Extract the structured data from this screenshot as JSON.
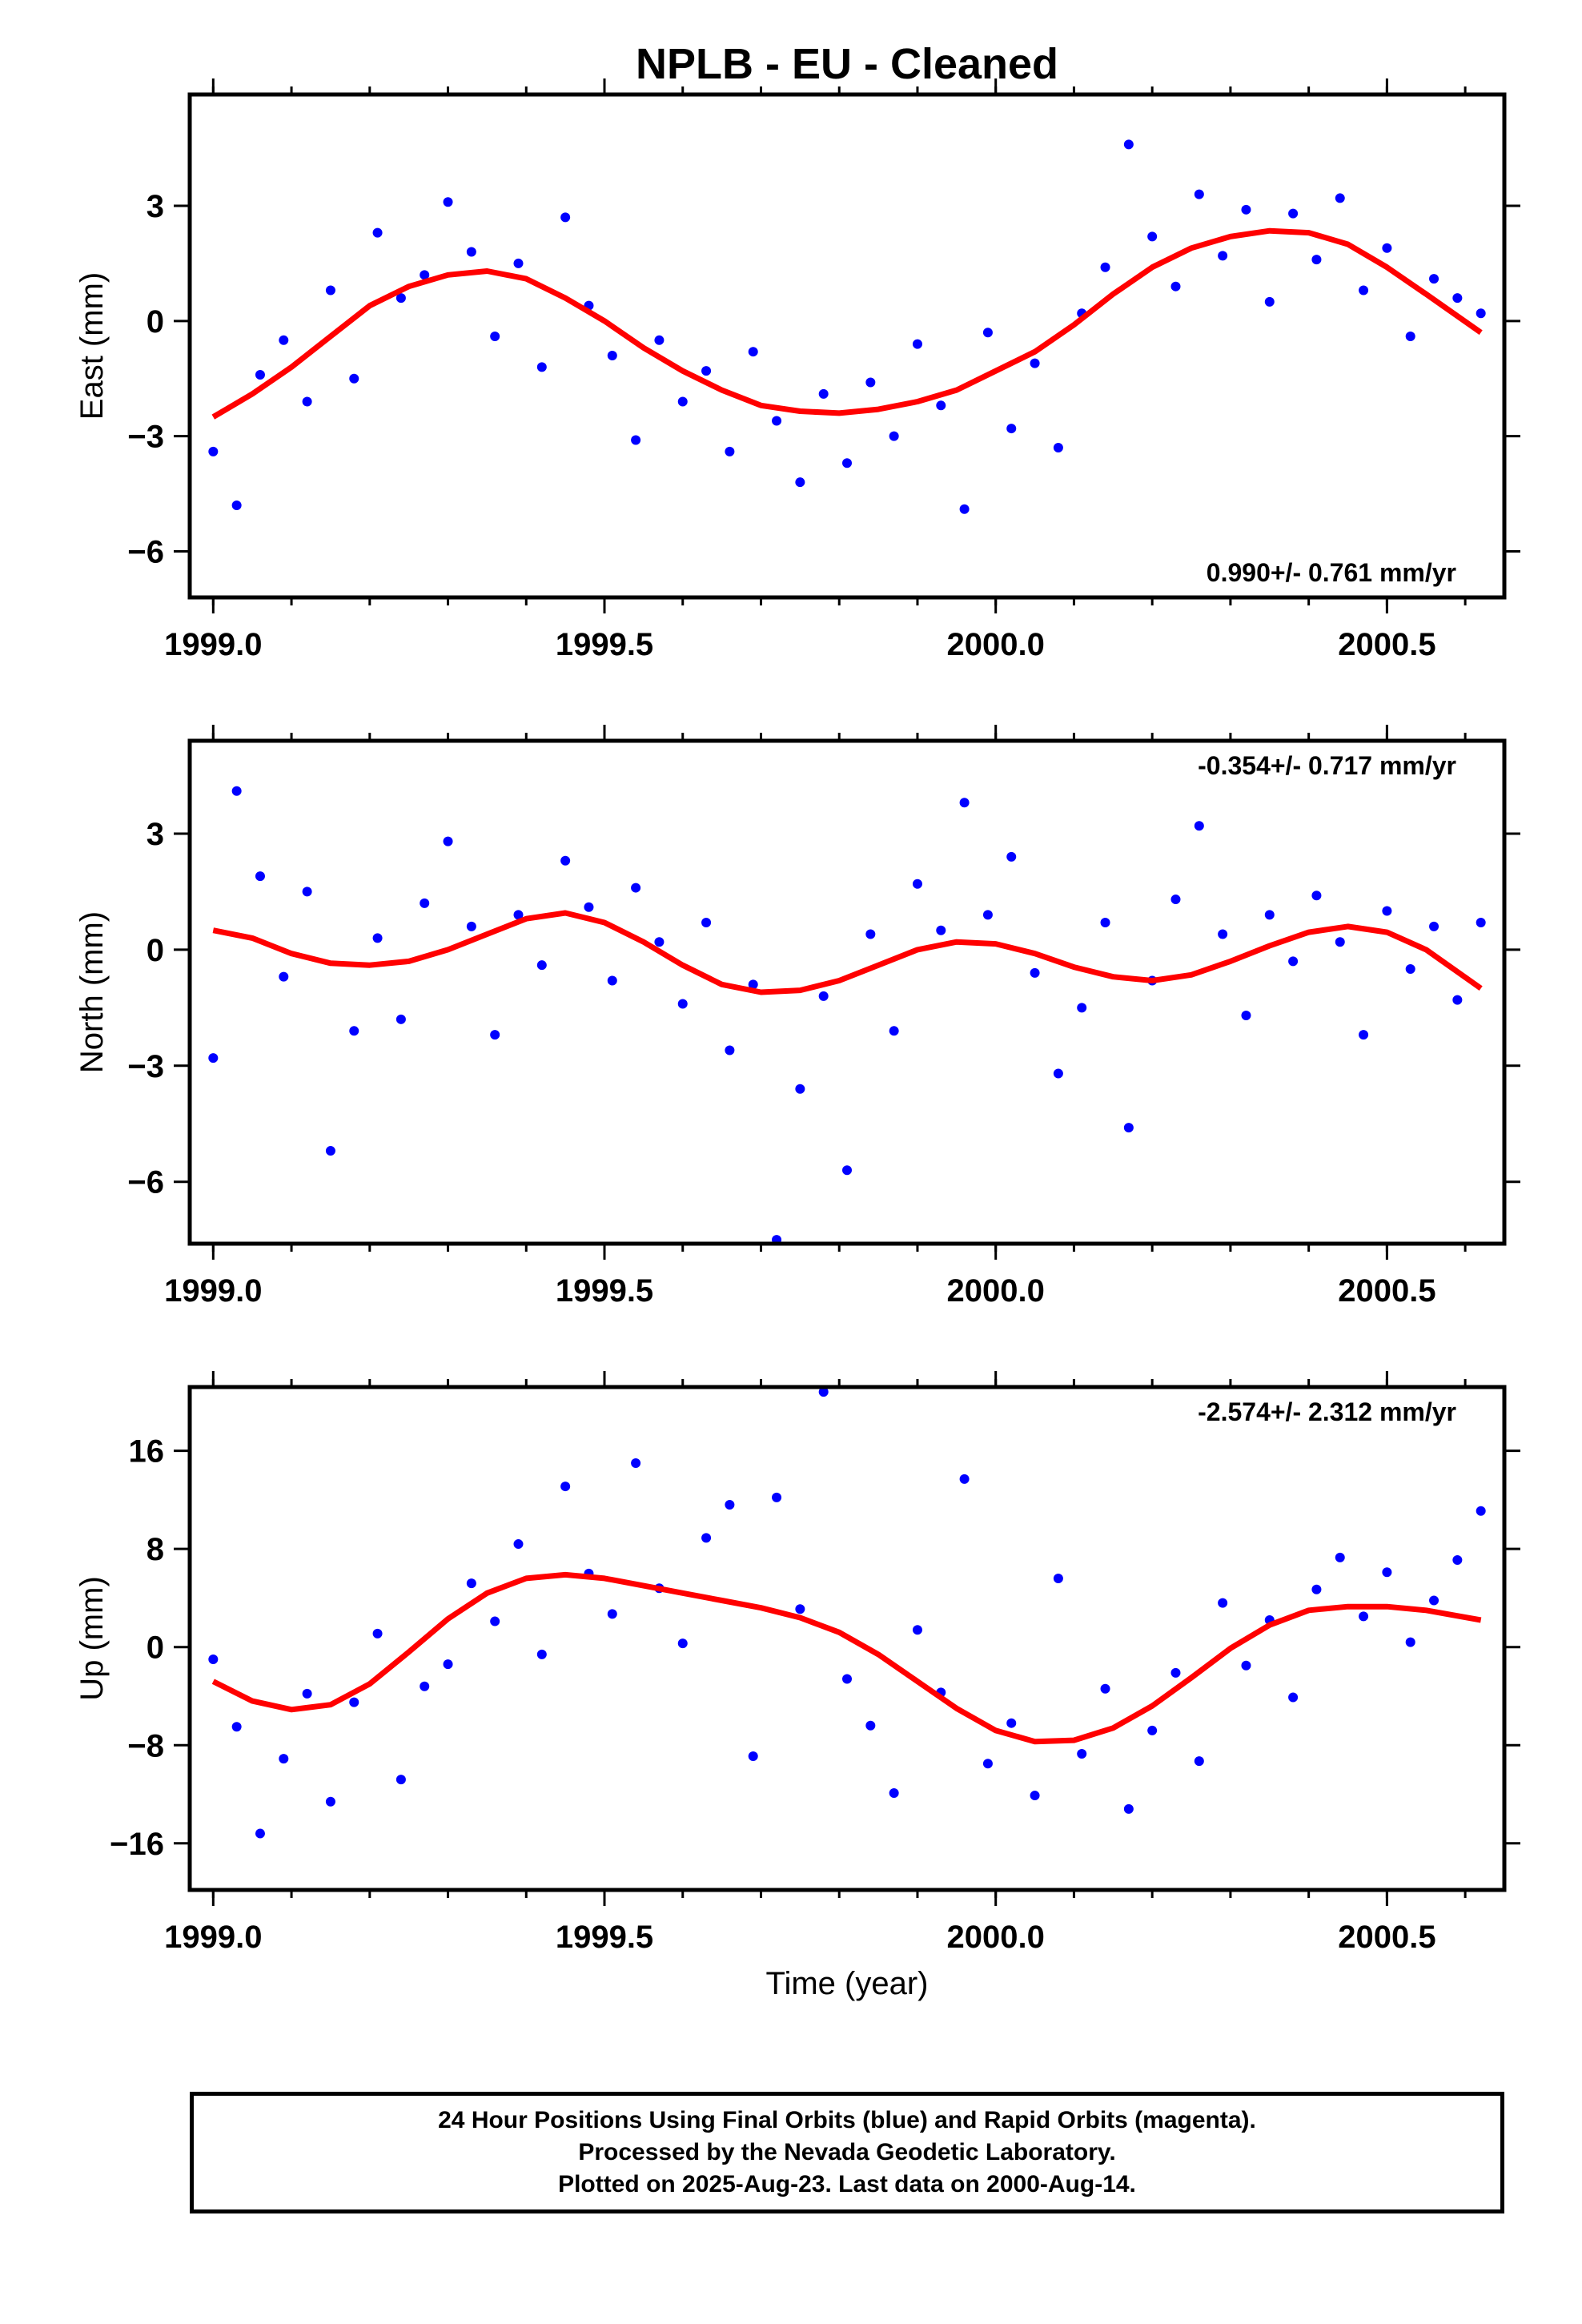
{
  "title": "NPLB  - EU - Cleaned",
  "xlabel": "Time (year)",
  "caption": {
    "line1": "24 Hour Positions Using Final Orbits (blue) and Rapid Orbits (magenta).",
    "line2": "Processed by the Nevada Geodetic Laboratory.",
    "line3": "Plotted on 2025-Aug-23. Last data on 2000-Aug-14."
  },
  "colors": {
    "points": "#0000ff",
    "fit": "#ff0000",
    "frame": "#000000"
  },
  "chart_data": [
    {
      "type": "scatter",
      "component": "east",
      "ylabel": "East (mm)",
      "rate_label": "0.990+/- 0.761 mm/yr",
      "rate_position": "bottom-right",
      "xlim": [
        1998.97,
        2000.65
      ],
      "ylim": [
        -7.2,
        5.9
      ],
      "xticks": [
        1999.0,
        1999.5,
        2000.0,
        2000.5
      ],
      "xtick_labels": [
        "1999.0",
        "1999.5",
        "2000.0",
        "2000.5"
      ],
      "yticks": [
        -6,
        -3,
        0,
        3
      ],
      "ytick_labels": [
        "−6",
        "−3",
        "0",
        "3"
      ],
      "series": [
        {
          "kind": "points",
          "x": [
            1999.0,
            1999.03,
            1999.06,
            1999.09,
            1999.12,
            1999.15,
            1999.18,
            1999.21,
            1999.24,
            1999.27,
            1999.3,
            1999.33,
            1999.36,
            1999.39,
            1999.42,
            1999.45,
            1999.48,
            1999.51,
            1999.54,
            1999.57,
            1999.6,
            1999.63,
            1999.66,
            1999.69,
            1999.72,
            1999.75,
            1999.78,
            1999.81,
            1999.84,
            1999.87,
            1999.9,
            1999.93,
            1999.96,
            1999.99,
            2000.02,
            2000.05,
            2000.08,
            2000.11,
            2000.14,
            2000.17,
            2000.2,
            2000.23,
            2000.26,
            2000.29,
            2000.32,
            2000.35,
            2000.38,
            2000.41,
            2000.44,
            2000.47,
            2000.5,
            2000.53,
            2000.56,
            2000.59,
            2000.62
          ],
          "y": [
            -3.4,
            -4.8,
            -1.4,
            -0.5,
            -2.1,
            0.8,
            -1.5,
            2.3,
            0.6,
            1.2,
            3.1,
            1.8,
            -0.4,
            1.5,
            -1.2,
            2.7,
            0.4,
            -0.9,
            -3.1,
            -0.5,
            -2.1,
            -1.3,
            -3.4,
            -0.8,
            -2.6,
            -4.2,
            -1.9,
            -3.7,
            -1.6,
            -3.0,
            -0.6,
            -2.2,
            -4.9,
            -0.3,
            -2.8,
            -1.1,
            -3.3,
            0.2,
            1.4,
            4.6,
            2.2,
            0.9,
            3.3,
            1.7,
            2.9,
            0.5,
            2.8,
            1.6,
            3.2,
            0.8,
            1.9,
            -0.4,
            1.1,
            0.6,
            0.2
          ]
        },
        {
          "kind": "fit",
          "x": [
            1999.0,
            1999.05,
            1999.1,
            1999.15,
            1999.2,
            1999.25,
            1999.3,
            1999.35,
            1999.4,
            1999.45,
            1999.5,
            1999.55,
            1999.6,
            1999.65,
            1999.7,
            1999.75,
            1999.8,
            1999.85,
            1999.9,
            1999.95,
            2000.0,
            2000.05,
            2000.1,
            2000.15,
            2000.2,
            2000.25,
            2000.3,
            2000.35,
            2000.4,
            2000.45,
            2000.5,
            2000.55,
            2000.62
          ],
          "y": [
            -2.5,
            -1.9,
            -1.2,
            -0.4,
            0.4,
            0.9,
            1.2,
            1.3,
            1.1,
            0.6,
            0.0,
            -0.7,
            -1.3,
            -1.8,
            -2.2,
            -2.35,
            -2.4,
            -2.3,
            -2.1,
            -1.8,
            -1.3,
            -0.8,
            -0.1,
            0.7,
            1.4,
            1.9,
            2.2,
            2.35,
            2.3,
            2.0,
            1.4,
            0.7,
            -0.3
          ]
        }
      ]
    },
    {
      "type": "scatter",
      "component": "north",
      "ylabel": "North (mm)",
      "rate_label": "-0.354+/- 0.717 mm/yr",
      "rate_position": "top-right",
      "xlim": [
        1998.97,
        2000.65
      ],
      "ylim": [
        -7.6,
        5.4
      ],
      "xticks": [
        1999.0,
        1999.5,
        2000.0,
        2000.5
      ],
      "xtick_labels": [
        "1999.0",
        "1999.5",
        "2000.0",
        "2000.5"
      ],
      "yticks": [
        -6,
        -3,
        0,
        3
      ],
      "ytick_labels": [
        "−6",
        "−3",
        "0",
        "3"
      ],
      "series": [
        {
          "kind": "points",
          "x": [
            1999.0,
            1999.03,
            1999.06,
            1999.09,
            1999.12,
            1999.15,
            1999.18,
            1999.21,
            1999.24,
            1999.27,
            1999.3,
            1999.33,
            1999.36,
            1999.39,
            1999.42,
            1999.45,
            1999.48,
            1999.51,
            1999.54,
            1999.57,
            1999.6,
            1999.63,
            1999.66,
            1999.69,
            1999.72,
            1999.75,
            1999.78,
            1999.81,
            1999.84,
            1999.87,
            1999.9,
            1999.93,
            1999.96,
            1999.99,
            2000.02,
            2000.05,
            2000.08,
            2000.11,
            2000.14,
            2000.17,
            2000.2,
            2000.23,
            2000.26,
            2000.29,
            2000.32,
            2000.35,
            2000.38,
            2000.41,
            2000.44,
            2000.47,
            2000.5,
            2000.53,
            2000.56,
            2000.59,
            2000.62
          ],
          "y": [
            -2.8,
            4.1,
            1.9,
            -0.7,
            1.5,
            -5.2,
            -2.1,
            0.3,
            -1.8,
            1.2,
            2.8,
            0.6,
            -2.2,
            0.9,
            -0.4,
            2.3,
            1.1,
            -0.8,
            1.6,
            0.2,
            -1.4,
            0.7,
            -2.6,
            -0.9,
            -7.5,
            -3.6,
            -1.2,
            -5.7,
            0.4,
            -2.1,
            1.7,
            0.5,
            3.8,
            0.9,
            2.4,
            -0.6,
            -3.2,
            -1.5,
            0.7,
            -4.6,
            -0.8,
            1.3,
            3.2,
            0.4,
            -1.7,
            0.9,
            -0.3,
            1.4,
            0.2,
            -2.2,
            1.0,
            -0.5,
            0.6,
            -1.3,
            0.7
          ]
        },
        {
          "kind": "fit",
          "x": [
            1999.0,
            1999.05,
            1999.1,
            1999.15,
            1999.2,
            1999.25,
            1999.3,
            1999.35,
            1999.4,
            1999.45,
            1999.5,
            1999.55,
            1999.6,
            1999.65,
            1999.7,
            1999.75,
            1999.8,
            1999.85,
            1999.9,
            1999.95,
            2000.0,
            2000.05,
            2000.1,
            2000.15,
            2000.2,
            2000.25,
            2000.3,
            2000.35,
            2000.4,
            2000.45,
            2000.5,
            2000.55,
            2000.62
          ],
          "y": [
            0.5,
            0.3,
            -0.1,
            -0.35,
            -0.4,
            -0.3,
            0.0,
            0.4,
            0.8,
            0.95,
            0.7,
            0.2,
            -0.4,
            -0.9,
            -1.1,
            -1.05,
            -0.8,
            -0.4,
            0.0,
            0.2,
            0.15,
            -0.1,
            -0.45,
            -0.7,
            -0.8,
            -0.65,
            -0.3,
            0.1,
            0.45,
            0.6,
            0.45,
            0.0,
            -1.0
          ]
        }
      ]
    },
    {
      "type": "scatter",
      "component": "up",
      "ylabel": "Up (mm)",
      "rate_label": "-2.574+/- 2.312 mm/yr",
      "rate_position": "top-right",
      "xlim": [
        1998.97,
        2000.65
      ],
      "ylim": [
        -19.8,
        21.2
      ],
      "xticks": [
        1999.0,
        1999.5,
        2000.0,
        2000.5
      ],
      "xtick_labels": [
        "1999.0",
        "1999.5",
        "2000.0",
        "2000.5"
      ],
      "yticks": [
        -16,
        -8,
        0,
        8,
        16
      ],
      "ytick_labels": [
        "−16",
        "−8",
        "0",
        "8",
        "16"
      ],
      "series": [
        {
          "kind": "points",
          "x": [
            1999.0,
            1999.03,
            1999.06,
            1999.09,
            1999.12,
            1999.15,
            1999.18,
            1999.21,
            1999.24,
            1999.27,
            1999.3,
            1999.33,
            1999.36,
            1999.39,
            1999.42,
            1999.45,
            1999.48,
            1999.51,
            1999.54,
            1999.57,
            1999.6,
            1999.63,
            1999.66,
            1999.69,
            1999.72,
            1999.75,
            1999.78,
            1999.81,
            1999.84,
            1999.87,
            1999.9,
            1999.93,
            1999.96,
            1999.99,
            2000.02,
            2000.05,
            2000.08,
            2000.11,
            2000.14,
            2000.17,
            2000.2,
            2000.23,
            2000.26,
            2000.29,
            2000.32,
            2000.35,
            2000.38,
            2000.41,
            2000.44,
            2000.47,
            2000.5,
            2000.53,
            2000.56,
            2000.59,
            2000.62
          ],
          "y": [
            -1.0,
            -6.5,
            -15.2,
            -9.1,
            -3.8,
            -12.6,
            -4.5,
            1.1,
            -10.8,
            -3.2,
            -1.4,
            5.2,
            2.1,
            8.4,
            -0.6,
            13.1,
            6.0,
            2.7,
            15.0,
            4.8,
            0.3,
            8.9,
            11.6,
            -8.9,
            12.2,
            3.1,
            20.8,
            -2.6,
            -6.4,
            -11.9,
            1.4,
            -3.7,
            13.7,
            -9.5,
            -6.2,
            -12.1,
            5.6,
            -8.7,
            -3.4,
            -13.2,
            -6.8,
            -2.1,
            -9.3,
            3.6,
            -1.5,
            2.2,
            -4.1,
            4.7,
            7.3,
            2.5,
            6.1,
            0.4,
            3.8,
            7.1,
            11.1
          ]
        },
        {
          "kind": "fit",
          "x": [
            1999.0,
            1999.05,
            1999.1,
            1999.15,
            1999.2,
            1999.25,
            1999.3,
            1999.35,
            1999.4,
            1999.45,
            1999.5,
            1999.55,
            1999.6,
            1999.65,
            1999.7,
            1999.75,
            1999.8,
            1999.85,
            1999.9,
            1999.95,
            2000.0,
            2000.05,
            2000.1,
            2000.15,
            2000.2,
            2000.25,
            2000.3,
            2000.35,
            2000.4,
            2000.45,
            2000.5,
            2000.55,
            2000.62
          ],
          "y": [
            -2.8,
            -4.4,
            -5.1,
            -4.7,
            -3.0,
            -0.4,
            2.3,
            4.4,
            5.6,
            5.9,
            5.6,
            5.0,
            4.4,
            3.8,
            3.2,
            2.4,
            1.2,
            -0.6,
            -2.8,
            -5.0,
            -6.8,
            -7.7,
            -7.6,
            -6.6,
            -4.8,
            -2.5,
            -0.1,
            1.8,
            3.0,
            3.3,
            3.3,
            3.0,
            2.2
          ]
        }
      ]
    }
  ]
}
